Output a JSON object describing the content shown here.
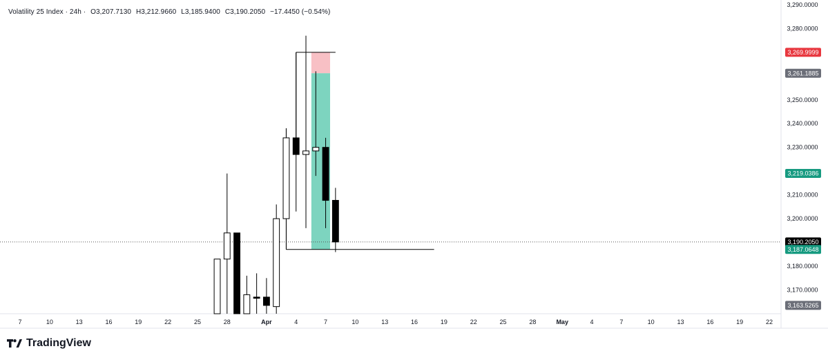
{
  "legend": {
    "symbol": "Volatility 25 Index · 24h ·",
    "open": "O3,207.7130",
    "high": "H3,212.9660",
    "low": "L3,185.9400",
    "close": "C3,190.2050",
    "change": "−17.4450 (−0.54%)"
  },
  "brand": {
    "name": "TradingView",
    "logo_icon": "tradingview-logo-icon"
  },
  "colors": {
    "up_body": "#ffffff",
    "down_body": "#000000",
    "wick": "#000000",
    "stop_zone": "#f7b9bf",
    "target_zone": "#6fcfb8",
    "badge_red": "#e8373f",
    "badge_green": "#169a80",
    "badge_gray": "#6b6e78",
    "badge_black": "#000000"
  },
  "chart_data": {
    "type": "candlestick",
    "title": "Volatility 25 Index · 24h",
    "y_axis": {
      "range": [
        3160,
        3292
      ],
      "ticks": [
        3170,
        3180,
        3190,
        3200,
        3210,
        3220,
        3230,
        3240,
        3250,
        3260,
        3270,
        3280,
        3290
      ],
      "tick_labels": [
        "3,170.0000",
        "3,180.0000",
        "",
        "3,200.0000",
        "3,210.0000",
        "",
        "3,230.0000",
        "3,240.0000",
        "3,250.0000",
        "",
        "",
        "3,280.0000",
        "3,290.0000"
      ]
    },
    "x_axis": {
      "start": "2025-03-07",
      "end": "2025-05-22",
      "ticks": [
        {
          "date": "2025-03-07",
          "label": "7"
        },
        {
          "date": "2025-03-10",
          "label": "10"
        },
        {
          "date": "2025-03-13",
          "label": "13"
        },
        {
          "date": "2025-03-16",
          "label": "16"
        },
        {
          "date": "2025-03-19",
          "label": "19"
        },
        {
          "date": "2025-03-22",
          "label": "22"
        },
        {
          "date": "2025-03-25",
          "label": "25"
        },
        {
          "date": "2025-03-28",
          "label": "28"
        },
        {
          "date": "2025-04-01",
          "label": "Apr",
          "bold": true
        },
        {
          "date": "2025-04-04",
          "label": "4"
        },
        {
          "date": "2025-04-07",
          "label": "7"
        },
        {
          "date": "2025-04-10",
          "label": "10"
        },
        {
          "date": "2025-04-13",
          "label": "13"
        },
        {
          "date": "2025-04-16",
          "label": "16"
        },
        {
          "date": "2025-04-19",
          "label": "19"
        },
        {
          "date": "2025-04-22",
          "label": "22"
        },
        {
          "date": "2025-04-25",
          "label": "25"
        },
        {
          "date": "2025-04-28",
          "label": "28"
        },
        {
          "date": "2025-05-01",
          "label": "May",
          "bold": true
        },
        {
          "date": "2025-05-04",
          "label": "4"
        },
        {
          "date": "2025-05-07",
          "label": "7"
        },
        {
          "date": "2025-05-10",
          "label": "10"
        },
        {
          "date": "2025-05-13",
          "label": "13"
        },
        {
          "date": "2025-05-16",
          "label": "16"
        },
        {
          "date": "2025-05-19",
          "label": "19"
        },
        {
          "date": "2025-05-22",
          "label": "22"
        }
      ]
    },
    "candles": [
      {
        "date": "2025-03-27",
        "open": 3160.0,
        "high": 3183.0,
        "low": 3160.0,
        "close": 3183.0
      },
      {
        "date": "2025-03-28",
        "open": 3183.0,
        "high": 3219.0,
        "low": 3160.0,
        "close": 3194.0
      },
      {
        "date": "2025-03-29",
        "open": 3194.0,
        "high": 3194.0,
        "low": 3160.0,
        "close": 3160.0
      },
      {
        "date": "2025-03-30",
        "open": 3160.0,
        "high": 3176.0,
        "low": 3160.0,
        "close": 3168.0
      },
      {
        "date": "2025-03-31",
        "open": 3167.0,
        "high": 3177.0,
        "low": 3160.0,
        "close": 3166.5
      },
      {
        "date": "2025-04-01",
        "open": 3167.0,
        "high": 3175.0,
        "low": 3160.0,
        "close": 3163.5
      },
      {
        "date": "2025-04-02",
        "open": 3163.0,
        "high": 3206.0,
        "low": 3160.0,
        "close": 3200.0
      },
      {
        "date": "2025-04-03",
        "open": 3200.0,
        "high": 3238.0,
        "low": 3187.0,
        "close": 3234.0
      },
      {
        "date": "2025-04-04",
        "open": 3234.0,
        "high": 3270.0,
        "low": 3203.0,
        "close": 3227.0
      },
      {
        "date": "2025-04-05",
        "open": 3227.0,
        "high": 3266.0,
        "low": 3196.0,
        "close": 3228.5
      },
      {
        "date": "2025-04-06",
        "open": 3228.5,
        "high": 3262.0,
        "low": 3218.0,
        "close": 3230.0
      },
      {
        "date": "2025-04-07",
        "open": 3230.0,
        "high": 3234.0,
        "low": 3196.0,
        "close": 3207.7
      },
      {
        "date": "2025-04-08",
        "open": 3207.713,
        "high": 3212.966,
        "low": 3185.94,
        "close": 3190.205
      }
    ],
    "high_swing_line": {
      "price": 3277.0,
      "date": "2025-04-05"
    },
    "position": {
      "type": "short",
      "start": "2025-04-06",
      "end": "2025-04-07",
      "entry": 3261.1885,
      "stop": 3269.9999,
      "target": 3187.0648
    },
    "horizontal_lines": [
      {
        "price": 3269.9999,
        "from": "2025-04-04",
        "to": "2025-04-08"
      },
      {
        "price": 3187.0648,
        "from": "2025-04-03",
        "to": "2025-04-18"
      }
    ],
    "current_price": 3190.205,
    "price_badges": [
      {
        "label": "3,269.9999",
        "price": 3269.9999,
        "color": "red"
      },
      {
        "label": "3,261.1885",
        "price": 3261.1885,
        "color": "gray"
      },
      {
        "label": "3,219.0386",
        "price": 3219.0386,
        "color": "green"
      },
      {
        "label": "3,190.2050",
        "price": 3190.205,
        "color": "black"
      },
      {
        "label": "3,187.0648",
        "price": 3187.0648,
        "color": "green"
      },
      {
        "label": "3,163.5265",
        "price": 3163.5265,
        "color": "gray"
      }
    ]
  }
}
